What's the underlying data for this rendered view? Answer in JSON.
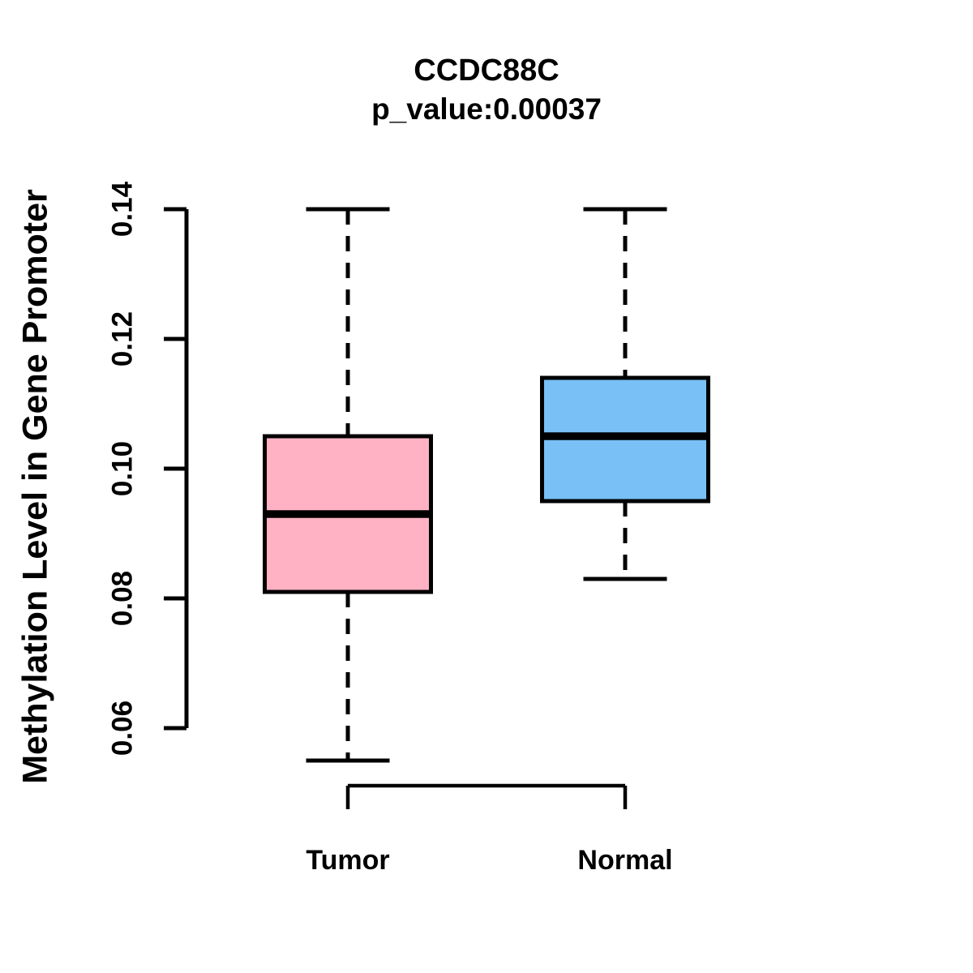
{
  "figure": {
    "title": "CCDC88C",
    "subtitle": "p_value:0.00037",
    "ylabel": "Methylation Level in Gene Promoter"
  },
  "chart_data": {
    "type": "boxplot",
    "title": "CCDC88C",
    "subtitle": "p_value:0.00037",
    "xlabel": "",
    "ylabel": "Methylation Level in Gene Promoter",
    "categories": [
      "Tumor",
      "Normal"
    ],
    "ytick_labels": [
      "0.06",
      "0.08",
      "0.10",
      "0.12",
      "0.14"
    ],
    "ylim": [
      0.055,
      0.14
    ],
    "grid": false,
    "legend_position": "none",
    "series": [
      {
        "name": "Tumor",
        "color": "#FFB2C4",
        "whisker_low": 0.055,
        "q1": 0.081,
        "median": 0.093,
        "q3": 0.105,
        "whisker_high": 0.14
      },
      {
        "name": "Normal",
        "color": "#78C0F5",
        "whisker_low": 0.083,
        "q1": 0.095,
        "median": 0.105,
        "q3": 0.114,
        "whisker_high": 0.14
      }
    ],
    "colors": {
      "box_border": "#000000",
      "median_line": "#000000",
      "axis": "#000000",
      "background": "#FFFFFF",
      "text": "#000000"
    }
  }
}
